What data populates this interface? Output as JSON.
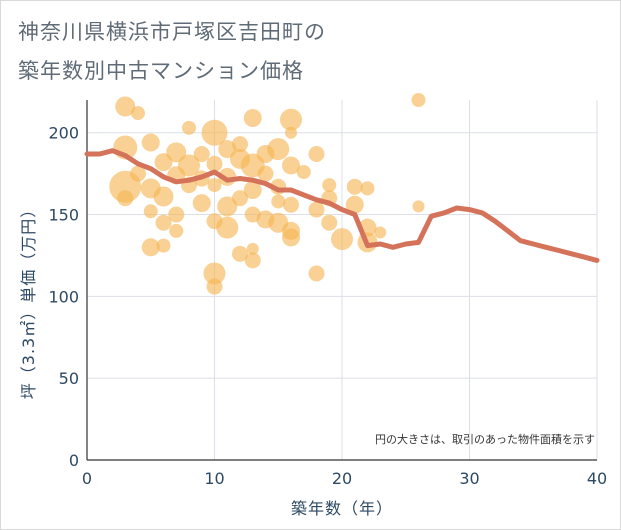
{
  "title_line1": "神奈川県横浜市戸塚区吉田町の",
  "title_line2": "築年数別中古マンション価格",
  "chart_data": {
    "type": "scatter",
    "xlabel": "築年数（年）",
    "ylabel": "坪（3.3㎡）単価（万円）",
    "xlim": [
      0,
      40
    ],
    "ylim": [
      0,
      220
    ],
    "xticks": [
      0,
      10,
      20,
      30,
      40
    ],
    "yticks": [
      0,
      50,
      100,
      150,
      200
    ],
    "grid": true,
    "note": "円の大きさは、取引のあった物件面積を示す",
    "colors": {
      "bubble": "#f5b553",
      "line": "#d4735a",
      "grid": "#dcdfe8",
      "text": "#2d4963"
    },
    "line": {
      "x": [
        0,
        1,
        2,
        3,
        4,
        5,
        6,
        7,
        8,
        9,
        10,
        11,
        12,
        13,
        14,
        15,
        16,
        17,
        18,
        19,
        20,
        21,
        22,
        23,
        24,
        25,
        26,
        27,
        28,
        29,
        30,
        31,
        32,
        33,
        34,
        35,
        36,
        37,
        38,
        39,
        40
      ],
      "y": [
        187,
        187,
        189,
        186,
        181,
        178,
        173,
        170,
        171,
        173,
        176,
        171,
        172,
        171,
        169,
        165,
        165,
        162,
        159,
        157,
        153,
        150,
        131,
        132,
        130,
        132,
        133,
        149,
        151,
        154,
        153,
        151,
        146,
        140,
        134,
        132,
        130,
        128,
        126,
        124,
        122
      ]
    },
    "bubbles": [
      {
        "x": 3,
        "y": 216,
        "s": 10
      },
      {
        "x": 4,
        "y": 212,
        "s": 7
      },
      {
        "x": 26,
        "y": 220,
        "s": 7
      },
      {
        "x": 10,
        "y": 200,
        "s": 13
      },
      {
        "x": 13,
        "y": 209,
        "s": 9
      },
      {
        "x": 16,
        "y": 208,
        "s": 11
      },
      {
        "x": 8,
        "y": 203,
        "s": 7
      },
      {
        "x": 16,
        "y": 200,
        "s": 6
      },
      {
        "x": 3,
        "y": 191,
        "s": 12
      },
      {
        "x": 5,
        "y": 194,
        "s": 9
      },
      {
        "x": 7,
        "y": 188,
        "s": 10
      },
      {
        "x": 9,
        "y": 187,
        "s": 8
      },
      {
        "x": 11,
        "y": 190,
        "s": 9
      },
      {
        "x": 12,
        "y": 193,
        "s": 8
      },
      {
        "x": 14,
        "y": 187,
        "s": 9
      },
      {
        "x": 15,
        "y": 190,
        "s": 11
      },
      {
        "x": 18,
        "y": 187,
        "s": 8
      },
      {
        "x": 6,
        "y": 182,
        "s": 9
      },
      {
        "x": 8,
        "y": 180,
        "s": 11
      },
      {
        "x": 10,
        "y": 181,
        "s": 8
      },
      {
        "x": 12,
        "y": 184,
        "s": 10
      },
      {
        "x": 13,
        "y": 180,
        "s": 12
      },
      {
        "x": 16,
        "y": 180,
        "s": 9
      },
      {
        "x": 4,
        "y": 175,
        "s": 8
      },
      {
        "x": 7,
        "y": 174,
        "s": 9
      },
      {
        "x": 9,
        "y": 172,
        "s": 8
      },
      {
        "x": 11,
        "y": 173,
        "s": 9
      },
      {
        "x": 14,
        "y": 175,
        "s": 8
      },
      {
        "x": 17,
        "y": 176,
        "s": 7
      },
      {
        "x": 3,
        "y": 167,
        "s": 16
      },
      {
        "x": 5,
        "y": 166,
        "s": 10
      },
      {
        "x": 8,
        "y": 168,
        "s": 8
      },
      {
        "x": 10,
        "y": 168,
        "s": 7
      },
      {
        "x": 13,
        "y": 165,
        "s": 9
      },
      {
        "x": 15,
        "y": 167,
        "s": 8
      },
      {
        "x": 19,
        "y": 168,
        "s": 7
      },
      {
        "x": 21,
        "y": 167,
        "s": 8
      },
      {
        "x": 22,
        "y": 166,
        "s": 7
      },
      {
        "x": 3,
        "y": 160,
        "s": 8
      },
      {
        "x": 6,
        "y": 161,
        "s": 10
      },
      {
        "x": 9,
        "y": 157,
        "s": 9
      },
      {
        "x": 12,
        "y": 160,
        "s": 8
      },
      {
        "x": 15,
        "y": 158,
        "s": 7
      },
      {
        "x": 16,
        "y": 156,
        "s": 8
      },
      {
        "x": 19,
        "y": 160,
        "s": 8
      },
      {
        "x": 21,
        "y": 156,
        "s": 9
      },
      {
        "x": 26,
        "y": 155,
        "s": 6
      },
      {
        "x": 5,
        "y": 152,
        "s": 7
      },
      {
        "x": 7,
        "y": 150,
        "s": 8
      },
      {
        "x": 11,
        "y": 155,
        "s": 10
      },
      {
        "x": 13,
        "y": 150,
        "s": 8
      },
      {
        "x": 14,
        "y": 147,
        "s": 9
      },
      {
        "x": 18,
        "y": 153,
        "s": 8
      },
      {
        "x": 6,
        "y": 145,
        "s": 8
      },
      {
        "x": 10,
        "y": 146,
        "s": 8
      },
      {
        "x": 11,
        "y": 142,
        "s": 11
      },
      {
        "x": 15,
        "y": 145,
        "s": 10
      },
      {
        "x": 16,
        "y": 140,
        "s": 9
      },
      {
        "x": 19,
        "y": 145,
        "s": 8
      },
      {
        "x": 22,
        "y": 142,
        "s": 9
      },
      {
        "x": 23,
        "y": 139,
        "s": 6
      },
      {
        "x": 7,
        "y": 140,
        "s": 7
      },
      {
        "x": 16,
        "y": 136,
        "s": 9
      },
      {
        "x": 20,
        "y": 135,
        "s": 11
      },
      {
        "x": 22,
        "y": 133,
        "s": 10
      },
      {
        "x": 5,
        "y": 130,
        "s": 9
      },
      {
        "x": 6,
        "y": 131,
        "s": 7
      },
      {
        "x": 12,
        "y": 126,
        "s": 8
      },
      {
        "x": 13,
        "y": 122,
        "s": 8
      },
      {
        "x": 13,
        "y": 129,
        "s": 6
      },
      {
        "x": 10,
        "y": 114,
        "s": 11
      },
      {
        "x": 18,
        "y": 114,
        "s": 8
      },
      {
        "x": 10,
        "y": 106,
        "s": 8
      }
    ]
  }
}
